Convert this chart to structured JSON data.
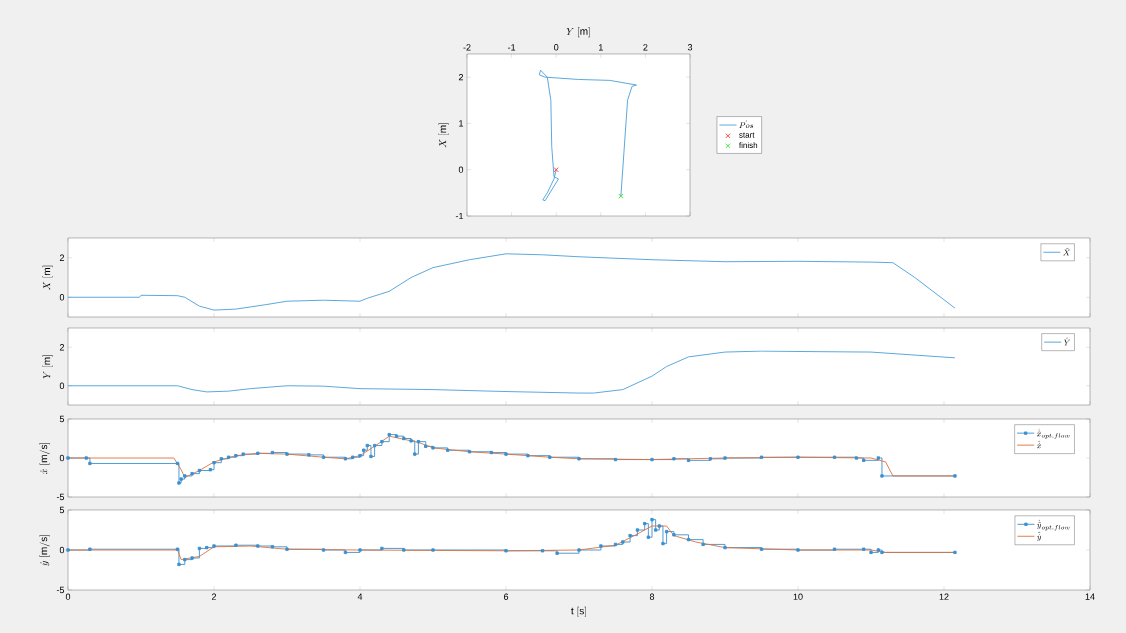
{
  "chart_data": [
    {
      "type": "line",
      "xlabel": "Y~[\\mathrm{m}]",
      "ylabel": "X~[\\mathrm{m}]",
      "xlim": [
        -2,
        3
      ],
      "xticks": [
        -2,
        -1,
        0,
        1,
        2,
        3
      ],
      "ylim": [
        -1,
        2.5
      ],
      "yticks": [
        -1,
        0,
        1,
        2
      ],
      "legend": "right",
      "series": [
        {
          "name": "\\dot{Pos}",
          "color": "#4a9fd8",
          "x": [
            0,
            -0.05,
            -0.2,
            -0.3,
            -0.25,
            0.05,
            -0.05,
            -0.1,
            -0.12,
            -0.2,
            -0.35,
            -0.38,
            -0.25,
            0.5,
            1.2,
            1.8,
            1.7,
            1.6,
            1.45
          ],
          "values": [
            0,
            -0.2,
            -0.5,
            -0.65,
            -0.67,
            -0.2,
            -0.15,
            0.5,
            1.5,
            2.0,
            2.15,
            2.05,
            2.0,
            1.95,
            1.93,
            1.83,
            1.8,
            1.5,
            -0.57
          ]
        },
        {
          "name": "\\mathrm{start}",
          "type": "scatter",
          "marker": "cross",
          "color": "#ff3030",
          "x": [
            0
          ],
          "values": [
            0
          ]
        },
        {
          "name": "\\mathrm{finish}",
          "type": "scatter",
          "marker": "cross",
          "color": "#30e030",
          "x": [
            1.45
          ],
          "values": [
            -0.57
          ]
        }
      ]
    },
    {
      "type": "line",
      "ylabel": "X~[\\mathrm{m}]",
      "xlim": [
        0,
        14
      ],
      "xticks": [
        0,
        2,
        4,
        6,
        8,
        10,
        12,
        14
      ],
      "ylim": [
        -1,
        3
      ],
      "yticks": [
        0,
        2
      ],
      "tick_labels": "y",
      "legend": "top right",
      "series": [
        {
          "name": "\\hat{X}",
          "color": "#4a9fd8",
          "x": [
            0,
            0.98,
            1.0,
            1.5,
            1.6,
            1.8,
            2.0,
            2.3,
            2.7,
            3.0,
            3.5,
            4.0,
            4.1,
            4.4,
            4.7,
            5.0,
            5.5,
            6.0,
            6.5,
            7,
            8,
            8.5,
            9,
            10,
            11,
            11.3,
            11.6,
            12.15
          ],
          "values": [
            0,
            0,
            0.1,
            0.08,
            0,
            -0.45,
            -0.65,
            -0.6,
            -0.38,
            -0.2,
            -0.15,
            -0.2,
            -0.05,
            0.3,
            1.0,
            1.5,
            1.9,
            2.2,
            2.15,
            2.05,
            1.9,
            1.85,
            1.8,
            1.82,
            1.78,
            1.75,
            1.0,
            -0.55
          ]
        }
      ]
    },
    {
      "type": "line",
      "ylabel": "Y~[\\mathrm{m}]",
      "xlim": [
        0,
        14
      ],
      "xticks": [
        0,
        2,
        4,
        6,
        8,
        10,
        12,
        14
      ],
      "ylim": [
        -1,
        3
      ],
      "yticks": [
        0,
        2
      ],
      "tick_labels": "y",
      "legend": "top right",
      "series": [
        {
          "name": "\\hat{Y}",
          "color": "#4a9fd8",
          "x": [
            0,
            1.5,
            1.7,
            1.9,
            2.2,
            2.5,
            3.0,
            3.5,
            4.0,
            5,
            6,
            7,
            7.2,
            7.6,
            8.0,
            8.2,
            8.5,
            9,
            9.5,
            10,
            11,
            12.15
          ],
          "values": [
            0,
            0,
            -0.2,
            -0.32,
            -0.28,
            -0.15,
            0,
            -0.02,
            -0.15,
            -0.2,
            -0.3,
            -0.38,
            -0.38,
            -0.2,
            0.5,
            1.0,
            1.5,
            1.75,
            1.8,
            1.78,
            1.75,
            1.45
          ]
        }
      ]
    },
    {
      "type": "line",
      "ylabel": "\\dot{x}~[\\mathrm{m/s}]",
      "xlim": [
        0,
        14
      ],
      "xticks": [
        0,
        2,
        4,
        6,
        8,
        10,
        12,
        14
      ],
      "ylim": [
        -5,
        5
      ],
      "yticks": [
        -5,
        0,
        5
      ],
      "tick_labels": "y",
      "legend": "top right",
      "series": [
        {
          "name": "\\dot{\\hat{x}}_{opt.flow}",
          "type": "step",
          "marker": "square",
          "color": "#3a8fd0",
          "x": [
            0,
            0.25,
            0.3,
            1.5,
            1.52,
            1.55,
            1.6,
            1.7,
            1.8,
            1.95,
            2.0,
            2.1,
            2.2,
            2.3,
            2.4,
            2.6,
            2.8,
            3.0,
            3.3,
            3.5,
            3.8,
            3.9,
            4.0,
            4.05,
            4.1,
            4.15,
            4.2,
            4.3,
            4.4,
            4.5,
            4.6,
            4.7,
            4.75,
            4.8,
            4.9,
            5.0,
            5.2,
            5.5,
            5.8,
            6.0,
            6.3,
            6.6,
            7.0,
            7.5,
            8.0,
            8.3,
            8.5,
            8.8,
            9.0,
            9.5,
            10.0,
            10.5,
            10.8,
            10.9,
            11.1,
            11.15,
            12.15
          ],
          "values": [
            0,
            0,
            -0.7,
            -0.7,
            -3.2,
            -2.7,
            -2.3,
            -2.0,
            -1.6,
            -1.5,
            -0.6,
            -0.1,
            0.1,
            0.3,
            0.5,
            0.6,
            0.7,
            0.5,
            0.4,
            0.1,
            -0.1,
            0.1,
            0.3,
            1.0,
            1.6,
            0.2,
            1.6,
            2.1,
            3.0,
            2.8,
            2.5,
            2.2,
            0.5,
            2.1,
            1.5,
            1.3,
            1.0,
            0.8,
            0.7,
            0.5,
            0.3,
            0.1,
            -0.1,
            -0.2,
            -0.2,
            -0.1,
            -0.3,
            -0.1,
            0,
            0.1,
            0.1,
            0.1,
            0,
            -0.3,
            0,
            -2.3,
            -2.3
          ]
        },
        {
          "name": "\\hat{\\dot{x}}",
          "color": "#e0703a",
          "x": [
            0,
            1.45,
            1.55,
            1.6,
            1.8,
            2.0,
            2.3,
            2.6,
            3.0,
            3.5,
            3.8,
            4.0,
            4.2,
            4.4,
            4.6,
            4.8,
            5.0,
            5.5,
            6.0,
            6.6,
            7.0,
            8.0,
            9.0,
            10.0,
            11.0,
            11.2,
            11.3,
            12.15
          ],
          "values": [
            0,
            0,
            -1.5,
            -2.5,
            -1.6,
            -0.5,
            0.3,
            0.6,
            0.5,
            0.1,
            -0.1,
            0.3,
            1.5,
            2.8,
            2.4,
            2.0,
            1.3,
            0.8,
            0.5,
            0.1,
            -0.1,
            -0.2,
            0,
            0.1,
            0,
            -0.5,
            -2.3,
            -2.3
          ]
        }
      ]
    },
    {
      "type": "line",
      "xlabel": "\\mathrm{t~[s]}",
      "ylabel": "\\dot{y}~[\\mathrm{m/s}]",
      "xlim": [
        0,
        14
      ],
      "xticks": [
        0,
        2,
        4,
        6,
        8,
        10,
        12,
        14
      ],
      "ylim": [
        -5,
        5
      ],
      "yticks": [
        -5,
        0,
        5
      ],
      "legend": "top right",
      "series": [
        {
          "name": "\\dot{\\hat{y}}_{opt.flow}",
          "type": "step",
          "marker": "square",
          "color": "#3a8fd0",
          "x": [
            0,
            0.3,
            1.5,
            1.52,
            1.6,
            1.7,
            1.8,
            1.9,
            2.0,
            2.3,
            2.6,
            2.8,
            3.0,
            3.5,
            3.8,
            4.0,
            4.3,
            4.6,
            5.0,
            6.0,
            6.5,
            6.7,
            7.0,
            7.3,
            7.5,
            7.6,
            7.7,
            7.8,
            7.9,
            7.95,
            8.0,
            8.05,
            8.1,
            8.15,
            8.2,
            8.3,
            8.5,
            8.7,
            9.0,
            9.5,
            10.0,
            10.5,
            10.9,
            11.0,
            11.1,
            11.15,
            12.15
          ],
          "values": [
            0,
            0.1,
            0.1,
            -1.8,
            -1.2,
            -1.0,
            0.2,
            0.3,
            0.5,
            0.6,
            0.5,
            0.4,
            0.1,
            0,
            -0.3,
            0,
            0.2,
            0,
            0,
            -0.1,
            -0.1,
            -0.4,
            0,
            0.5,
            0.7,
            1.0,
            1.8,
            2.5,
            3.3,
            1.6,
            3.8,
            2.5,
            3.0,
            0.8,
            2.3,
            1.9,
            1.3,
            0.7,
            0.3,
            0.1,
            0,
            0.1,
            0.1,
            -0.3,
            0,
            -0.3,
            -0.3
          ]
        },
        {
          "name": "\\hat{\\dot{y}}",
          "color": "#e0703a",
          "x": [
            0,
            1.5,
            1.55,
            1.8,
            2.0,
            2.5,
            3.0,
            4.0,
            6.0,
            7.0,
            7.5,
            7.8,
            8.0,
            8.2,
            8.3,
            8.6,
            9.0,
            10.0,
            11.0,
            11.2,
            12.15
          ],
          "values": [
            0,
            0,
            -1.2,
            -0.8,
            0.4,
            0.5,
            0.1,
            0,
            -0.1,
            0,
            0.6,
            2.0,
            3.0,
            3.0,
            1.8,
            1.0,
            0.3,
            0,
            0,
            -0.3,
            -0.3
          ]
        }
      ]
    }
  ]
}
